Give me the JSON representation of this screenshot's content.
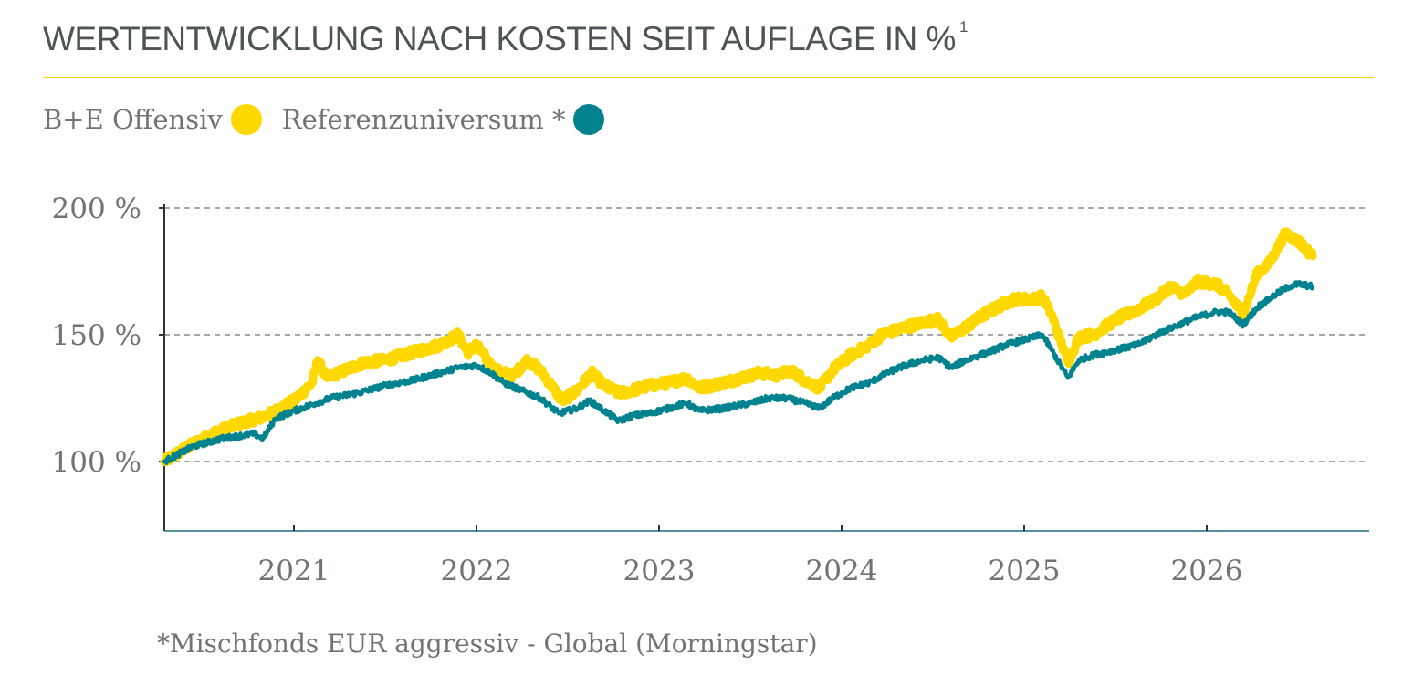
{
  "colors": {
    "accent": "#FFD800",
    "series_fund": "#FFD800",
    "series_reference": "#00838F",
    "text": "#4d5455",
    "grid": "#8a8a8a"
  },
  "chart_data": {
    "type": "line",
    "title": "WERTENTWICKLUNG NACH KOSTEN SEIT AUFLAGE IN %",
    "title_footnote_marker": "1",
    "xlabel": "",
    "ylabel": "",
    "ylim": [
      73,
      200
    ],
    "xlim": [
      2020.29,
      2026.9
    ],
    "y_ticks": [
      {
        "value": 100,
        "label": "100 %"
      },
      {
        "value": 150,
        "label": "150 %"
      },
      {
        "value": 200,
        "label": "200 %"
      }
    ],
    "x_ticks": [
      {
        "value": 2021.0,
        "label": "2021"
      },
      {
        "value": 2022.0,
        "label": "2022"
      },
      {
        "value": 2023.0,
        "label": "2023"
      },
      {
        "value": 2024.0,
        "label": "2024"
      },
      {
        "value": 2025.0,
        "label": "2025"
      },
      {
        "value": 2026.0,
        "label": "2026"
      }
    ],
    "grid": "horizontal dashed",
    "legend": "top-left",
    "series": [
      {
        "name": "B+E Offensiv",
        "color": "#FFD800",
        "points": [
          [
            2020.29,
            100
          ],
          [
            2020.4,
            105
          ],
          [
            2020.55,
            111
          ],
          [
            2020.7,
            115
          ],
          [
            2020.85,
            118
          ],
          [
            2021.0,
            124
          ],
          [
            2021.1,
            131
          ],
          [
            2021.13,
            140
          ],
          [
            2021.18,
            133
          ],
          [
            2021.28,
            136
          ],
          [
            2021.38,
            139
          ],
          [
            2021.5,
            140
          ],
          [
            2021.65,
            143
          ],
          [
            2021.8,
            146
          ],
          [
            2021.9,
            150
          ],
          [
            2021.95,
            143
          ],
          [
            2022.0,
            146
          ],
          [
            2022.1,
            136
          ],
          [
            2022.2,
            134
          ],
          [
            2022.28,
            140
          ],
          [
            2022.35,
            136
          ],
          [
            2022.4,
            131
          ],
          [
            2022.47,
            124
          ],
          [
            2022.55,
            128
          ],
          [
            2022.63,
            135
          ],
          [
            2022.7,
            130
          ],
          [
            2022.78,
            127
          ],
          [
            2022.85,
            128
          ],
          [
            2022.95,
            130
          ],
          [
            2023.05,
            131
          ],
          [
            2023.15,
            133
          ],
          [
            2023.22,
            129
          ],
          [
            2023.35,
            131
          ],
          [
            2023.45,
            133
          ],
          [
            2023.55,
            135
          ],
          [
            2023.65,
            134
          ],
          [
            2023.72,
            136
          ],
          [
            2023.8,
            132
          ],
          [
            2023.88,
            129
          ],
          [
            2023.95,
            136
          ],
          [
            2024.05,
            142
          ],
          [
            2024.15,
            146
          ],
          [
            2024.22,
            150
          ],
          [
            2024.35,
            153
          ],
          [
            2024.45,
            155
          ],
          [
            2024.53,
            156
          ],
          [
            2024.6,
            149
          ],
          [
            2024.68,
            153
          ],
          [
            2024.78,
            158
          ],
          [
            2024.88,
            162
          ],
          [
            2024.95,
            164
          ],
          [
            2025.05,
            164
          ],
          [
            2025.1,
            165
          ],
          [
            2025.15,
            158
          ],
          [
            2025.24,
            139
          ],
          [
            2025.3,
            149
          ],
          [
            2025.38,
            150
          ],
          [
            2025.5,
            156
          ],
          [
            2025.62,
            160
          ],
          [
            2025.72,
            164
          ],
          [
            2025.8,
            169
          ],
          [
            2025.88,
            166
          ],
          [
            2025.95,
            171
          ],
          [
            2026.05,
            170
          ],
          [
            2026.12,
            166
          ],
          [
            2026.2,
            158
          ],
          [
            2026.28,
            175
          ],
          [
            2026.33,
            177
          ],
          [
            2026.38,
            183
          ],
          [
            2026.43,
            190
          ],
          [
            2026.5,
            187
          ],
          [
            2026.58,
            181
          ]
        ]
      },
      {
        "name": "Referenzuniversum *",
        "color": "#00838F",
        "points": [
          [
            2020.29,
            100
          ],
          [
            2020.45,
            106
          ],
          [
            2020.6,
            109
          ],
          [
            2020.78,
            111
          ],
          [
            2020.83,
            109
          ],
          [
            2020.9,
            117
          ],
          [
            2021.0,
            120
          ],
          [
            2021.12,
            123
          ],
          [
            2021.2,
            125
          ],
          [
            2021.35,
            127
          ],
          [
            2021.5,
            130
          ],
          [
            2021.65,
            132
          ],
          [
            2021.8,
            135
          ],
          [
            2021.9,
            137
          ],
          [
            2022.0,
            138
          ],
          [
            2022.08,
            135
          ],
          [
            2022.15,
            131
          ],
          [
            2022.25,
            128
          ],
          [
            2022.35,
            125
          ],
          [
            2022.45,
            119
          ],
          [
            2022.55,
            121
          ],
          [
            2022.62,
            124
          ],
          [
            2022.7,
            120
          ],
          [
            2022.78,
            116
          ],
          [
            2022.85,
            118
          ],
          [
            2022.95,
            119
          ],
          [
            2023.05,
            121
          ],
          [
            2023.15,
            123
          ],
          [
            2023.22,
            120
          ],
          [
            2023.35,
            121
          ],
          [
            2023.5,
            123
          ],
          [
            2023.6,
            125
          ],
          [
            2023.7,
            125
          ],
          [
            2023.8,
            123
          ],
          [
            2023.88,
            121
          ],
          [
            2023.95,
            125
          ],
          [
            2024.05,
            129
          ],
          [
            2024.15,
            131
          ],
          [
            2024.25,
            135
          ],
          [
            2024.35,
            138
          ],
          [
            2024.45,
            140
          ],
          [
            2024.53,
            141
          ],
          [
            2024.6,
            137
          ],
          [
            2024.68,
            140
          ],
          [
            2024.8,
            143
          ],
          [
            2024.9,
            146
          ],
          [
            2025.0,
            148
          ],
          [
            2025.1,
            150
          ],
          [
            2025.15,
            144
          ],
          [
            2025.24,
            133
          ],
          [
            2025.3,
            140
          ],
          [
            2025.38,
            142
          ],
          [
            2025.5,
            144
          ],
          [
            2025.62,
            146
          ],
          [
            2025.75,
            151
          ],
          [
            2025.85,
            154
          ],
          [
            2025.95,
            157
          ],
          [
            2026.05,
            159
          ],
          [
            2026.12,
            159
          ],
          [
            2026.2,
            154
          ],
          [
            2026.28,
            161
          ],
          [
            2026.38,
            166
          ],
          [
            2026.45,
            169
          ],
          [
            2026.5,
            170
          ],
          [
            2026.58,
            169
          ]
        ]
      }
    ]
  },
  "footnote": "*Mischfonds EUR aggressiv - Global (Morningstar)"
}
